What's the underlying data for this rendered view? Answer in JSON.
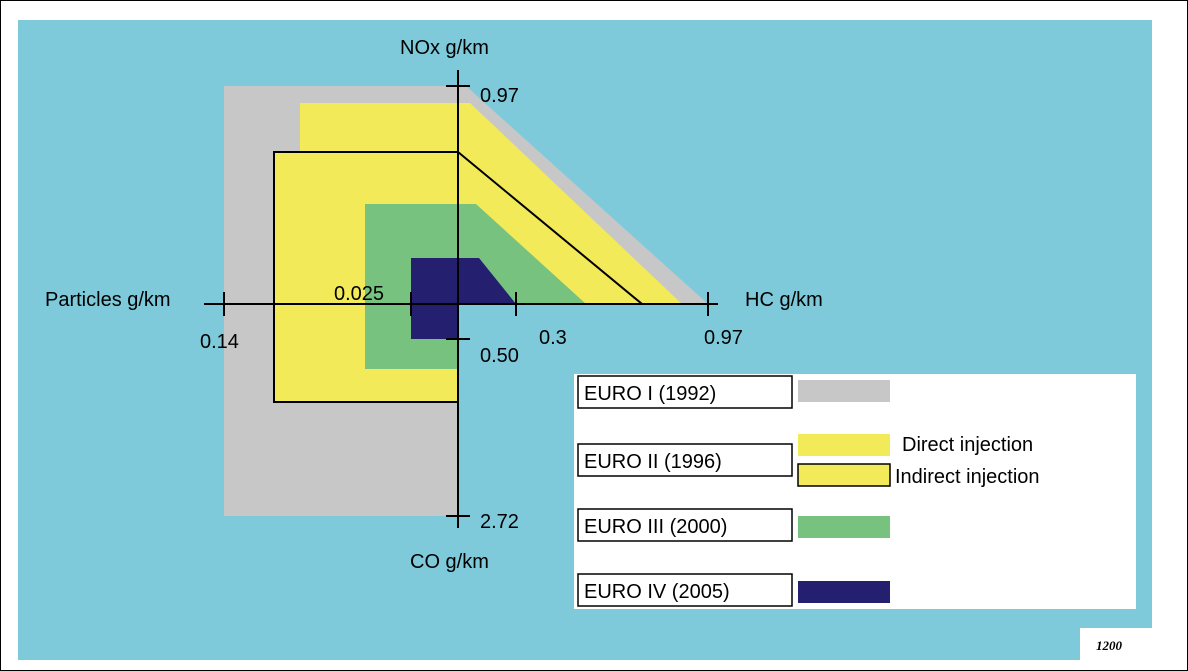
{
  "colors": {
    "background": "#7ecadb",
    "euro1": "#c7c7c7",
    "euro2": "#f2ea59",
    "euro3": "#77c27f",
    "euro4": "#241f6e",
    "legend_bg": "#ffffff",
    "line": "#000000"
  },
  "axes": {
    "nox": {
      "label": "NOx g/km",
      "tick": "0.97"
    },
    "hc": {
      "label": "HC g/km",
      "ticks": [
        "0.3",
        "0.97"
      ]
    },
    "particles": {
      "label": "Particles g/km",
      "ticks": [
        "0.025",
        "0.14"
      ]
    },
    "co": {
      "label": "CO g/km",
      "ticks": [
        "0.50",
        "2.72"
      ]
    }
  },
  "legend": {
    "euro1": {
      "label": "EURO I  (1992)"
    },
    "euro2": {
      "label": "EURO II  (1996)",
      "direct": "Direct injection",
      "indirect": "Indirect injection"
    },
    "euro3": {
      "label": "EURO III  (2000)"
    },
    "euro4": {
      "label": "EURO IV  (2005)"
    }
  },
  "stamp": "1200"
}
